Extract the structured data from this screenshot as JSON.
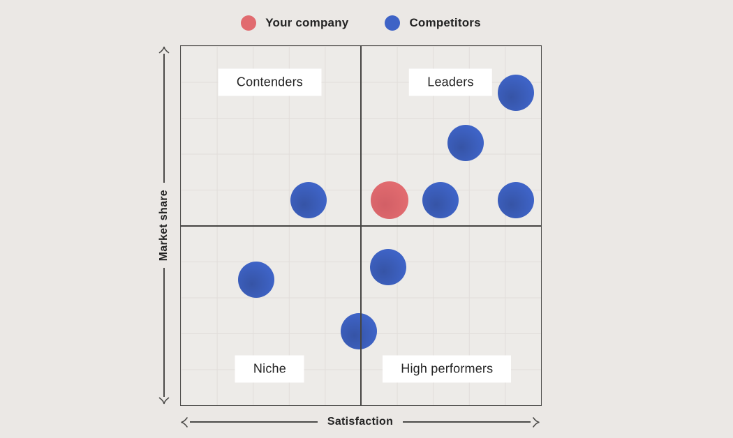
{
  "colors": {
    "background": "#ebe8e5",
    "chart_fill": "#edebe8",
    "grid_line": "#e1ddda",
    "frame_line": "#454442",
    "label_box": "#ffffff",
    "text": "#232323",
    "your_company": "#e16b6f",
    "competitors": "#3e63c6"
  },
  "chart_data": {
    "type": "scatter",
    "title": "",
    "xlabel": "Satisfaction",
    "ylabel": "Market share",
    "xlim": [
      0,
      10
    ],
    "ylim": [
      0,
      10
    ],
    "grid": true,
    "grid_divisions": 10,
    "legend_position": "top-center",
    "quadrant_labels": {
      "top_left": "Contenders",
      "top_right": "Leaders",
      "bottom_left": "Niche",
      "bottom_right": "High performers"
    },
    "series": [
      {
        "id": "your-company",
        "name": "Your company",
        "color": "#e16b6f",
        "shade": "#d25f66",
        "marker_size": 54,
        "points": [
          [
            5.8,
            5.7
          ]
        ]
      },
      {
        "id": "competitor",
        "name": "Competitors",
        "color": "#3e63c6",
        "shade": "#3654a6",
        "marker_size": 52,
        "points": [
          [
            9.3,
            8.7
          ],
          [
            7.9,
            7.3
          ],
          [
            3.55,
            5.7
          ],
          [
            7.2,
            5.7
          ],
          [
            9.3,
            5.7
          ],
          [
            2.1,
            3.5
          ],
          [
            5.75,
            3.85
          ],
          [
            4.95,
            2.05
          ]
        ]
      }
    ]
  }
}
